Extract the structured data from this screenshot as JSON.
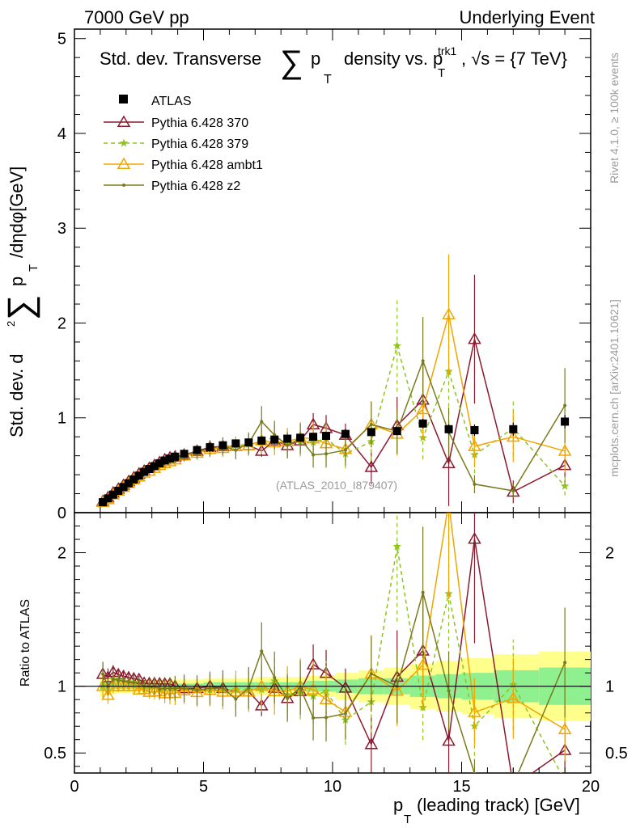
{
  "header": {
    "left": "7000 GeV pp",
    "right": "Underlying Event"
  },
  "side_labels": {
    "rivet": "Rivet 4.1.0, ≥ 100k events",
    "mcplots": "mcplots.cern.ch [arXiv:2401.10621]"
  },
  "chart_data": {
    "type": "line",
    "title_parts": {
      "a": "Std. dev. Transverse",
      "b": "p",
      "c": "T",
      "d": "density vs. p",
      "e": "trk1",
      "f": "T",
      "g": ", √s = {7 TeV}"
    },
    "xlabel_parts": {
      "a": "p",
      "b": "T",
      "c": "(leading track) [GeV]"
    },
    "ylabel_parts": {
      "a": "Std. dev. d",
      "b": "2",
      "c": "p",
      "d": "T",
      "e": "/dηdφ[GeV]"
    },
    "ratio_ylabel": "Ratio to ATLAS",
    "watermark": "(ATLAS_2010_I879407)",
    "xlim": [
      0,
      20
    ],
    "ylim": [
      0,
      5.1
    ],
    "ratio_ylim": [
      0.35,
      2.3
    ],
    "x_ticks": [
      "0",
      "5",
      "10",
      "15",
      "20"
    ],
    "y_ticks": [
      "0",
      "1",
      "2",
      "3",
      "4",
      "5"
    ],
    "ratio_ticks": [
      "0.5",
      "1",
      "2"
    ],
    "x": [
      1.1,
      1.3,
      1.5,
      1.7,
      1.9,
      2.1,
      2.3,
      2.5,
      2.7,
      2.9,
      3.1,
      3.3,
      3.5,
      3.7,
      3.9,
      4.25,
      4.75,
      5.25,
      5.75,
      6.25,
      6.75,
      7.25,
      7.75,
      8.25,
      8.75,
      9.25,
      9.75,
      10.5,
      11.5,
      12.5,
      13.5,
      14.5,
      15.5,
      17.0,
      19.0
    ],
    "atlas": [
      0.11,
      0.15,
      0.19,
      0.23,
      0.27,
      0.31,
      0.35,
      0.39,
      0.43,
      0.46,
      0.49,
      0.52,
      0.55,
      0.57,
      0.59,
      0.62,
      0.66,
      0.69,
      0.71,
      0.73,
      0.74,
      0.76,
      0.77,
      0.78,
      0.79,
      0.8,
      0.81,
      0.83,
      0.85,
      0.86,
      0.94,
      0.88,
      0.87,
      0.88,
      0.96
    ],
    "atlas_err": [
      0.01,
      0.01,
      0.01,
      0.01,
      0.01,
      0.01,
      0.01,
      0.01,
      0.01,
      0.01,
      0.01,
      0.01,
      0.01,
      0.01,
      0.01,
      0.01,
      0.01,
      0.01,
      0.01,
      0.02,
      0.02,
      0.02,
      0.02,
      0.02,
      0.02,
      0.03,
      0.03,
      0.03,
      0.04,
      0.04,
      0.05,
      0.05,
      0.06,
      0.07,
      0.07
    ],
    "band_inner": [
      0.03,
      0.03,
      0.02,
      0.02,
      0.02,
      0.02,
      0.02,
      0.02,
      0.02,
      0.02,
      0.02,
      0.02,
      0.02,
      0.02,
      0.02,
      0.02,
      0.02,
      0.03,
      0.03,
      0.03,
      0.03,
      0.03,
      0.03,
      0.03,
      0.03,
      0.04,
      0.04,
      0.05,
      0.06,
      0.06,
      0.08,
      0.09,
      0.1,
      0.12,
      0.14
    ],
    "band_outer": [
      0.08,
      0.07,
      0.06,
      0.05,
      0.05,
      0.05,
      0.05,
      0.05,
      0.05,
      0.05,
      0.05,
      0.05,
      0.05,
      0.05,
      0.05,
      0.05,
      0.05,
      0.06,
      0.06,
      0.06,
      0.06,
      0.07,
      0.07,
      0.07,
      0.07,
      0.08,
      0.08,
      0.1,
      0.12,
      0.14,
      0.17,
      0.19,
      0.21,
      0.24,
      0.26
    ],
    "series": [
      {
        "name": "Pythia 6.428 370",
        "color": "#8b1a2e",
        "dashed": false,
        "marker": "triangle-open",
        "values": [
          0.12,
          0.16,
          0.21,
          0.25,
          0.29,
          0.33,
          0.37,
          0.41,
          0.44,
          0.47,
          0.5,
          0.53,
          0.56,
          0.58,
          0.59,
          0.61,
          0.65,
          0.69,
          0.7,
          0.7,
          0.71,
          0.65,
          0.76,
          0.71,
          0.76,
          0.93,
          0.89,
          0.82,
          0.48,
          0.92,
          1.19,
          0.52,
          1.83,
          0.22,
          0.5
        ],
        "errors": [
          0.01,
          0.01,
          0.01,
          0.01,
          0.01,
          0.01,
          0.01,
          0.01,
          0.01,
          0.01,
          0.01,
          0.01,
          0.01,
          0.01,
          0.01,
          0.02,
          0.02,
          0.03,
          0.03,
          0.04,
          0.05,
          0.06,
          0.07,
          0.08,
          0.1,
          0.12,
          0.14,
          0.12,
          0.18,
          0.3,
          0.4,
          0.45,
          0.68,
          0.12,
          0.2
        ]
      },
      {
        "name": "Pythia 6.428 379",
        "color": "#8fc31f",
        "dashed": true,
        "marker": "star",
        "values": [
          0.11,
          0.15,
          0.2,
          0.24,
          0.28,
          0.32,
          0.36,
          0.39,
          0.43,
          0.46,
          0.49,
          0.51,
          0.54,
          0.56,
          0.58,
          0.61,
          0.64,
          0.67,
          0.69,
          0.71,
          0.72,
          0.74,
          0.8,
          0.73,
          0.75,
          0.74,
          0.78,
          0.62,
          0.75,
          1.76,
          0.79,
          1.49,
          0.61,
          0.89,
          0.28
        ]
      },
      {
        "name": "Pythia 6.428 ambt1",
        "color": "#f0a500",
        "dashed": false,
        "marker": "triangle-open",
        "values": [
          0.11,
          0.14,
          0.19,
          0.23,
          0.27,
          0.31,
          0.35,
          0.38,
          0.42,
          0.44,
          0.47,
          0.5,
          0.52,
          0.54,
          0.56,
          0.6,
          0.63,
          0.67,
          0.68,
          0.7,
          0.71,
          0.76,
          0.74,
          0.75,
          0.79,
          0.78,
          0.73,
          0.67,
          0.93,
          0.83,
          1.09,
          2.09,
          0.7,
          0.8,
          0.65
        ]
      },
      {
        "name": "Pythia 6.428 z2",
        "color": "#7a7a1e",
        "dashed": false,
        "marker": "dot",
        "values": [
          0.12,
          0.15,
          0.2,
          0.24,
          0.28,
          0.32,
          0.36,
          0.4,
          0.43,
          0.46,
          0.49,
          0.51,
          0.54,
          0.56,
          0.58,
          0.61,
          0.64,
          0.68,
          0.7,
          0.66,
          0.73,
          0.96,
          0.82,
          0.71,
          0.78,
          0.61,
          0.62,
          0.66,
          0.93,
          0.86,
          1.6,
          0.85,
          0.3,
          0.23,
          1.13
        ]
      }
    ]
  }
}
